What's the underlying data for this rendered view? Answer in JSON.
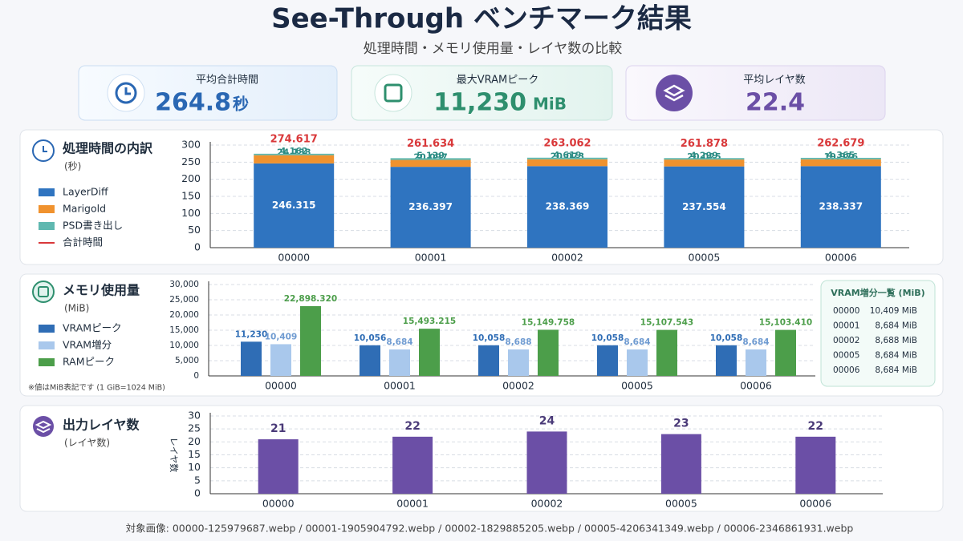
{
  "header": {
    "title": "See-Through ベンチマーク結果",
    "subtitle": "処理時間・メモリ使用量・レイヤ数の比較"
  },
  "kpis": [
    {
      "label": "平均合計時間",
      "value": "264.8",
      "unit": "秒"
    },
    {
      "label": "最大VRAMピーク",
      "value": "11,230",
      "unit": "MiB"
    },
    {
      "label": "平均レイヤ数",
      "value": "22.4"
    }
  ],
  "chart_data": [
    {
      "type": "bar",
      "stacked": true,
      "title": "処理時間の内訳",
      "subtitle": "(秒)",
      "categories": [
        "00000",
        "00001",
        "00002",
        "00005",
        "00006"
      ],
      "series": [
        {
          "name": "LayerDiff",
          "color": "#2f74c0",
          "values": [
            246.315,
            236.397,
            238.369,
            237.554,
            238.337
          ]
        },
        {
          "name": "Marigold",
          "color": "#f0922e",
          "values": [
            24.138,
            20.097,
            20.073,
            20.025,
            19.976
          ]
        },
        {
          "name": "PSD書き出し",
          "color": "#5fb8b0",
          "values": [
            4.162,
            5.139,
            4.619,
            4.299,
            4.365
          ]
        }
      ],
      "totals": {
        "name": "合計時間",
        "color": "#d9383a",
        "values": [
          274.617,
          261.634,
          263.062,
          261.878,
          262.679
        ]
      },
      "ylim": [
        0,
        300
      ],
      "yticks": [
        0,
        50,
        100,
        150,
        200,
        250,
        300
      ],
      "grid": true
    },
    {
      "type": "bar",
      "title": "メモリ使用量",
      "subtitle": "(MiB)",
      "categories": [
        "00000",
        "00001",
        "00002",
        "00005",
        "00006"
      ],
      "series": [
        {
          "name": "VRAMピーク",
          "color": "#2f6db5",
          "values": [
            11230,
            10056,
            10058,
            10058,
            10058
          ],
          "value_labels": [
            "11,230",
            "10,056",
            "10,058",
            "10,058",
            "10,058"
          ]
        },
        {
          "name": "VRAM増分",
          "color": "#a9c8ec",
          "values": [
            10409,
            8684,
            8688,
            8684,
            8684
          ],
          "value_labels": [
            "10,409",
            "8,684",
            "8,688",
            "8,684",
            "8,684"
          ]
        },
        {
          "name": "RAMピーク",
          "color": "#4c9e4a",
          "values": [
            22898.32,
            15493.215,
            15149.758,
            15107.543,
            15103.41
          ],
          "value_labels": [
            "22,898.320",
            "15,493.215",
            "15,149.758",
            "15,107.543",
            "15,103.410"
          ]
        }
      ],
      "ylim": [
        0,
        30000
      ],
      "yticks": [
        0,
        {
          "value": 5000,
          "label": "5,000"
        },
        {
          "value": 10000,
          "label": "10,000"
        },
        {
          "value": 15000,
          "label": "15,000"
        },
        {
          "value": 20000,
          "label": "20,000"
        },
        {
          "value": 25000,
          "label": "25,000"
        },
        {
          "value": 30000,
          "label": "30,000"
        }
      ],
      "grid": true
    },
    {
      "type": "bar",
      "title": "出力レイヤ数",
      "subtitle": "(レイヤ数)",
      "y_label": "レイヤ数",
      "categories": [
        "00000",
        "00001",
        "00002",
        "00005",
        "00006"
      ],
      "values": [
        21,
        22,
        24,
        23,
        22
      ],
      "color": "#6b4fa6",
      "ylim": [
        0,
        30
      ],
      "yticks": [
        0,
        5,
        10,
        15,
        20,
        25,
        30
      ],
      "grid": true
    }
  ],
  "vram_table": {
    "title": "VRAM増分一覧 (MiB)",
    "rows": [
      [
        "00000",
        "10,409 MiB"
      ],
      [
        "00001",
        "8,684 MiB"
      ],
      [
        "00002",
        "8,688 MiB"
      ],
      [
        "00005",
        "8,684 MiB"
      ],
      [
        "00006",
        "8,684 MiB"
      ]
    ]
  },
  "note": "※値はMiB表記です (1 GiB=1024 MiB)",
  "footer": "対象画像: 00000-125979687.webp / 00001-1905904792.webp / 00002-1829885205.webp / 00005-4206341349.webp / 00006-2346861931.webp"
}
